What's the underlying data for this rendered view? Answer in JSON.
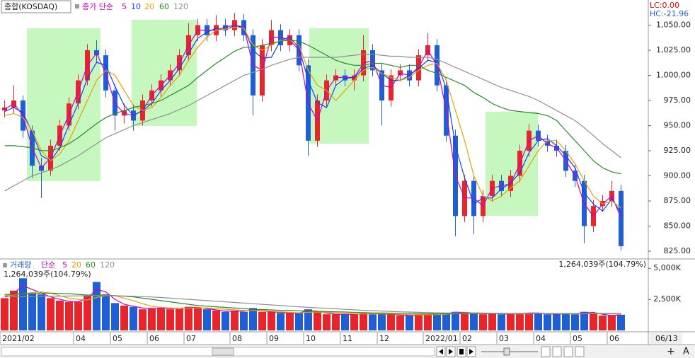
{
  "chart_data": [
    {
      "type": "candlestick",
      "title": "종합(KOSDAQ)",
      "ma_label": "종가 단순",
      "categories": [
        "2021/02",
        null,
        null,
        null,
        null,
        null,
        null,
        null,
        "04",
        null,
        null,
        null,
        "05",
        null,
        null,
        null,
        "06",
        null,
        null,
        null,
        "07",
        null,
        null,
        null,
        null,
        "08",
        null,
        null,
        null,
        "09",
        null,
        null,
        null,
        "10",
        null,
        null,
        null,
        "11",
        null,
        null,
        null,
        "12",
        null,
        null,
        null,
        null,
        "2022/01",
        null,
        null,
        null,
        "02",
        null,
        null,
        null,
        "03",
        null,
        null,
        null,
        "04",
        null,
        null,
        null,
        "05",
        null,
        null,
        null,
        "06",
        null
      ],
      "x_cursor_label": "06/13",
      "open": [
        965,
        968,
        975,
        945,
        910,
        905,
        930,
        950,
        972,
        995,
        1025,
        1020,
        985,
        960,
        965,
        955,
        975,
        985,
        995,
        1005,
        1020,
        1040,
        1050,
        1040,
        1050,
        1045,
        1055,
        1040,
        980,
        1030,
        1045,
        1030,
        1040,
        1010,
        935,
        975,
        995,
        1000,
        995,
        1000,
        1025,
        1005,
        975,
        1000,
        1005,
        995,
        1020,
        1030,
        990,
        940,
        860,
        895,
        860,
        880,
        895,
        885,
        900,
        925,
        945,
        935,
        930,
        925,
        905,
        895,
        850,
        870,
        875,
        885
      ],
      "high": [
        975,
        990,
        980,
        950,
        918,
        936,
        956,
        978,
        1001,
        1031,
        1035,
        1026,
        991,
        972,
        971,
        981,
        991,
        1001,
        1011,
        1026,
        1052,
        1056,
        1056,
        1060,
        1056,
        1062,
        1061,
        1046,
        1036,
        1055,
        1051,
        1046,
        1046,
        1016,
        981,
        1001,
        1006,
        1006,
        1006,
        1040,
        1031,
        1011,
        1006,
        1011,
        1011,
        1026,
        1042,
        1036,
        996,
        946,
        901,
        901,
        886,
        901,
        901,
        906,
        931,
        952,
        951,
        941,
        936,
        931,
        911,
        901,
        876,
        881,
        895,
        891
      ],
      "low": [
        958,
        962,
        938,
        898,
        878,
        900,
        925,
        945,
        966,
        990,
        1012,
        978,
        945,
        952,
        945,
        950,
        969,
        979,
        989,
        999,
        1014,
        1034,
        1034,
        1034,
        1039,
        1039,
        1034,
        960,
        974,
        1024,
        1024,
        1024,
        1004,
        920,
        929,
        969,
        989,
        989,
        985,
        994,
        999,
        950,
        969,
        994,
        989,
        989,
        1014,
        984,
        934,
        840,
        854,
        842,
        854,
        874,
        879,
        879,
        894,
        919,
        929,
        924,
        919,
        899,
        889,
        833,
        844,
        864,
        869,
        826
      ],
      "close": [
        968,
        975,
        945,
        910,
        905,
        930,
        950,
        972,
        995,
        1025,
        1020,
        985,
        960,
        965,
        955,
        975,
        985,
        995,
        1005,
        1020,
        1040,
        1050,
        1040,
        1050,
        1045,
        1055,
        1040,
        980,
        1030,
        1045,
        1030,
        1040,
        1010,
        935,
        975,
        995,
        1000,
        995,
        1000,
        1025,
        1005,
        975,
        1000,
        1005,
        995,
        1020,
        1030,
        990,
        940,
        860,
        895,
        860,
        880,
        895,
        885,
        900,
        925,
        945,
        935,
        930,
        925,
        905,
        895,
        850,
        870,
        875,
        885,
        830
      ],
      "up_color": "#e8252b",
      "down_color": "#1f5fd6",
      "series": [
        {
          "name": "5",
          "color": "#c800c8",
          "values": [
            966,
            972,
            960,
            928,
            908,
            918,
            940,
            961,
            984,
            1010,
            1022,
            1002,
            972,
            962,
            960,
            965,
            980,
            990,
            1000,
            1012,
            1030,
            1045,
            1045,
            1045,
            1048,
            1050,
            1048,
            1010,
            1005,
            1038,
            1038,
            1035,
            1025,
            972,
            955,
            985,
            998,
            998,
            998,
            1012,
            1015,
            990,
            988,
            1002,
            1000,
            1008,
            1025,
            1010,
            965,
            900,
            878,
            878,
            870,
            888,
            890,
            892,
            912,
            935,
            940,
            932,
            928,
            915,
            900,
            872,
            860,
            872,
            880,
            858
          ]
        },
        {
          "name": "10",
          "color": "#1a3cff",
          "values": [
            964,
            968,
            963,
            943,
            920,
            915,
            928,
            951,
            972,
            997,
            1013,
            1010,
            989,
            970,
            960,
            965,
            972,
            985,
            995,
            1007,
            1022,
            1037,
            1043,
            1047,
            1045,
            1050,
            1047,
            1025,
            1017,
            1018,
            1035,
            1038,
            1027,
            995,
            973,
            968,
            990,
            997,
            998,
            1007,
            1010,
            1002,
            995,
            995,
            1000,
            1007,
            1015,
            1013,
            987,
            930,
            898,
            872,
            878,
            878,
            887,
            893,
            903,
            923,
            935,
            937,
            930,
            920,
            908,
            883,
            872,
            865,
            877,
            863
          ]
        },
        {
          "name": "20",
          "color": "#e8a000",
          "values": [
            960,
            962,
            958,
            945,
            925,
            915,
            922,
            935,
            955,
            975,
            995,
            1005,
            1000,
            985,
            970,
            965,
            968,
            978,
            990,
            1000,
            1015,
            1028,
            1038,
            1045,
            1046,
            1048,
            1047,
            1030,
            1025,
            1030,
            1035,
            1035,
            1030,
            1005,
            990,
            985,
            975,
            985,
            995,
            1005,
            1008,
            1002,
            998,
            995,
            998,
            1005,
            1010,
            1012,
            995,
            965,
            935,
            900,
            880,
            875,
            880,
            888,
            895,
            910,
            925,
            935,
            935,
            925,
            912,
            895,
            880,
            872,
            875,
            868
          ]
        },
        {
          "name": "60",
          "color": "#2a8a2a",
          "values": [
            930,
            930,
            929,
            928,
            925,
            925,
            928,
            932,
            938,
            945,
            952,
            958,
            962,
            965,
            968,
            970,
            972,
            975,
            980,
            985,
            990,
            998,
            1005,
            1012,
            1018,
            1024,
            1028,
            1028,
            1030,
            1032,
            1034,
            1035,
            1034,
            1030,
            1025,
            1020,
            1015,
            1012,
            1010,
            1010,
            1012,
            1012,
            1010,
            1008,
            1010,
            1010,
            1005,
            1002,
            998,
            994,
            990,
            983,
            978,
            972,
            968,
            965,
            964,
            963,
            962,
            960,
            955,
            945,
            935,
            925,
            915,
            908,
            904,
            902
          ]
        },
        {
          "name": "120",
          "color": "#909090",
          "values": [
            885,
            890,
            895,
            900,
            903,
            906,
            910,
            915,
            920,
            926,
            932,
            938,
            942,
            946,
            950,
            953,
            956,
            959,
            962,
            966,
            970,
            975,
            980,
            985,
            990,
            995,
            1000,
            1003,
            1006,
            1010,
            1013,
            1016,
            1018,
            1018,
            1018,
            1018,
            1018,
            1019,
            1020,
            1021,
            1021,
            1020,
            1019,
            1019,
            1018,
            1018,
            1018,
            1016,
            1012,
            1008,
            1004,
            1000,
            996,
            992,
            988,
            985,
            982,
            979,
            975,
            970,
            965,
            960,
            955,
            948,
            940,
            932,
            925,
            918
          ]
        }
      ],
      "ylim": [
        818,
        1075
      ],
      "yticks": [
        {
          "value": 825,
          "label": "825.00"
        },
        {
          "value": 850,
          "label": "850.00"
        },
        {
          "value": 875,
          "label": "875.00"
        },
        {
          "value": 900,
          "label": "900.00"
        },
        {
          "value": 925,
          "label": "925.00"
        },
        {
          "value": 950,
          "label": "950.00"
        },
        {
          "value": 975,
          "label": "975.00"
        },
        {
          "value": 1000,
          "label": "1,000.00"
        },
        {
          "value": 1025,
          "label": "1,025.00"
        },
        {
          "value": 1050,
          "label": "1,050.00"
        }
      ],
      "annotations": [
        "LC:0.00",
        "HC:-21.96"
      ]
    },
    {
      "type": "bar",
      "title": "거래량",
      "ma_label": "단순",
      "readout": "1,264,039주(104.79%)",
      "values": [
        2600,
        3200,
        4200,
        3000,
        2900,
        2600,
        2400,
        2300,
        2300,
        2800,
        3900,
        2900,
        2200,
        2000,
        1900,
        1700,
        1800,
        1800,
        1700,
        1800,
        1900,
        1800,
        1700,
        1600,
        1500,
        1600,
        1500,
        1800,
        1500,
        1500,
        1400,
        1400,
        1400,
        1700,
        1500,
        1300,
        1300,
        1300,
        1300,
        1400,
        1300,
        1400,
        1300,
        1200,
        1200,
        1300,
        1300,
        1300,
        1400,
        1500,
        1400,
        1400,
        1300,
        1400,
        1300,
        1300,
        1400,
        1400,
        1400,
        1300,
        1300,
        1400,
        1300,
        1500,
        1400,
        1200,
        1200,
        1264.039
      ],
      "series": [
        {
          "name": "5",
          "color": "#c800c8",
          "values": [
            2700,
            3000,
            3600,
            3300,
            3000,
            2700,
            2500,
            2350,
            2300,
            2600,
            3300,
            3100,
            2500,
            2100,
            1950,
            1800,
            1750,
            1800,
            1750,
            1750,
            1850,
            1850,
            1750,
            1650,
            1550,
            1550,
            1550,
            1700,
            1600,
            1500,
            1450,
            1400,
            1400,
            1600,
            1550,
            1400,
            1300,
            1300,
            1300,
            1350,
            1350,
            1350,
            1300,
            1250,
            1200,
            1250,
            1300,
            1300,
            1350,
            1450,
            1450,
            1400,
            1350,
            1350,
            1350,
            1300,
            1350,
            1400,
            1400,
            1350,
            1300,
            1350,
            1350,
            1400,
            1450,
            1300,
            1200,
            1230
          ]
        },
        {
          "name": "20",
          "color": "#e8a000",
          "values": [
            2800,
            2850,
            2950,
            3050,
            3100,
            3000,
            2800,
            2600,
            2500,
            2450,
            2650,
            2800,
            2800,
            2600,
            2400,
            2150,
            1950,
            1850,
            1800,
            1750,
            1800,
            1800,
            1800,
            1750,
            1700,
            1650,
            1600,
            1600,
            1600,
            1550,
            1500,
            1450,
            1420,
            1450,
            1480,
            1460,
            1420,
            1380,
            1340,
            1330,
            1320,
            1330,
            1330,
            1300,
            1270,
            1260,
            1260,
            1270,
            1300,
            1360,
            1400,
            1420,
            1400,
            1380,
            1360,
            1340,
            1330,
            1340,
            1360,
            1370,
            1350,
            1340,
            1330,
            1350,
            1380,
            1380,
            1340,
            1290
          ]
        },
        {
          "name": "60",
          "color": "#2a8a2a",
          "values": [
            2900,
            2900,
            2950,
            2950,
            3000,
            3000,
            2980,
            2950,
            2900,
            2850,
            2850,
            2850,
            2800,
            2750,
            2700,
            2600,
            2500,
            2400,
            2300,
            2200,
            2100,
            2000,
            1950,
            1900,
            1850,
            1800,
            1750,
            1700,
            1680,
            1650,
            1620,
            1600,
            1580,
            1560,
            1540,
            1520,
            1500,
            1480,
            1450,
            1430,
            1410,
            1400,
            1390,
            1380,
            1370,
            1360,
            1350,
            1340,
            1340,
            1340,
            1345,
            1350,
            1355,
            1360,
            1360,
            1360,
            1360,
            1360,
            1360,
            1360,
            1360,
            1355,
            1350,
            1350,
            1355,
            1360,
            1360,
            1355
          ]
        },
        {
          "name": "120",
          "color": "#909090",
          "values": [
            2700,
            2710,
            2720,
            2730,
            2740,
            2750,
            2760,
            2770,
            2780,
            2790,
            2800,
            2800,
            2790,
            2770,
            2750,
            2720,
            2690,
            2650,
            2600,
            2550,
            2500,
            2450,
            2400,
            2350,
            2300,
            2250,
            2200,
            2150,
            2100,
            2050,
            2000,
            1950,
            1900,
            1860,
            1820,
            1780,
            1740,
            1700,
            1660,
            1620,
            1590,
            1560,
            1530,
            1500,
            1480,
            1460,
            1440,
            1420,
            1410,
            1400,
            1395,
            1390,
            1385,
            1380,
            1375,
            1370,
            1365,
            1360,
            1355,
            1350,
            1350,
            1350,
            1350,
            1350,
            1350,
            1350,
            1350,
            1350
          ]
        }
      ],
      "ylim": [
        0,
        5640
      ],
      "yticks": [
        {
          "value": 2500,
          "label": "2,500K"
        },
        {
          "value": 5000,
          "label": "5,000K"
        }
      ]
    }
  ],
  "controls": {
    "zoom_in": "+",
    "font": "A"
  }
}
